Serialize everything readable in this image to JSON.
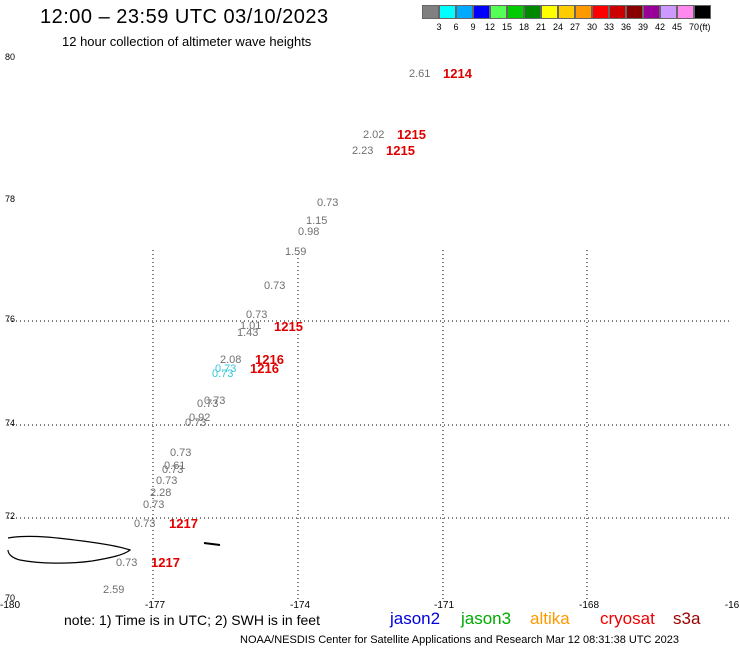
{
  "title": "12:00 – 23:59 UTC 03/10/2023",
  "subtitle": "12 hour collection of altimeter wave heights",
  "legend": {
    "unit": "(ft)",
    "items": [
      {
        "label": "3",
        "color": "#808080"
      },
      {
        "label": "6",
        "color": "#00ffff"
      },
      {
        "label": "9",
        "color": "#00aaff"
      },
      {
        "label": "12",
        "color": "#0000ff"
      },
      {
        "label": "15",
        "color": "#55ff55"
      },
      {
        "label": "18",
        "color": "#00cc00"
      },
      {
        "label": "21",
        "color": "#008800"
      },
      {
        "label": "24",
        "color": "#ffff00"
      },
      {
        "label": "27",
        "color": "#ffcc00"
      },
      {
        "label": "30",
        "color": "#ff9900"
      },
      {
        "label": "33",
        "color": "#ff0000"
      },
      {
        "label": "36",
        "color": "#cc0000"
      },
      {
        "label": "39",
        "color": "#880000"
      },
      {
        "label": "42",
        "color": "#990099"
      },
      {
        "label": "45",
        "color": "#cc99ff"
      },
      {
        "label": "70",
        "color": "#ff88ee"
      },
      {
        "label": "",
        "color": "#000000"
      }
    ]
  },
  "axes": {
    "lat_labels": [
      "80",
      "78",
      "76",
      "74",
      "72",
      "70"
    ],
    "lon_labels": [
      "-180",
      "-177",
      "-174",
      "-171",
      "-168",
      "-16"
    ]
  },
  "wave_heights": [
    {
      "value": "2.61",
      "color": "grey"
    },
    {
      "value": "2.02",
      "color": "grey"
    },
    {
      "value": "2.23",
      "color": "grey"
    },
    {
      "value": "0.73",
      "color": "grey"
    },
    {
      "value": "1.15",
      "color": "grey"
    },
    {
      "value": "0.98",
      "color": "grey"
    },
    {
      "value": "1.59",
      "color": "grey"
    },
    {
      "value": "0.73",
      "color": "grey"
    },
    {
      "value": "0.73",
      "color": "grey"
    },
    {
      "value": "1.01",
      "color": "grey"
    },
    {
      "value": "1.43",
      "color": "grey"
    },
    {
      "value": "2.08",
      "color": "grey"
    },
    {
      "value": "0.73",
      "color": "cyan"
    },
    {
      "value": "0.73",
      "color": "cyan"
    },
    {
      "value": "0.73",
      "color": "grey"
    },
    {
      "value": "0.73",
      "color": "grey"
    },
    {
      "value": "0.92",
      "color": "grey"
    },
    {
      "value": "0.73",
      "color": "grey"
    },
    {
      "value": "0.73",
      "color": "grey"
    },
    {
      "value": "0.61",
      "color": "grey"
    },
    {
      "value": "0.73",
      "color": "grey"
    },
    {
      "value": "0.73",
      "color": "grey"
    },
    {
      "value": "2.28",
      "color": "grey"
    },
    {
      "value": "0.73",
      "color": "grey"
    },
    {
      "value": "0.73",
      "color": "grey"
    },
    {
      "value": "0.73",
      "color": "grey"
    },
    {
      "value": "2.59",
      "color": "grey"
    }
  ],
  "pass_times": [
    "1214",
    "1215",
    "1215",
    "1215",
    "1216",
    "1216",
    "1217",
    "1217"
  ],
  "note": "note: 1) Time is in UTC; 2) SWH is in feet",
  "satellites": [
    {
      "name": "jason2",
      "color": "#0000dd"
    },
    {
      "name": "jason3",
      "color": "#00aa00"
    },
    {
      "name": "altika",
      "color": "#ff9900"
    },
    {
      "name": "cryosat",
      "color": "#ee0000"
    },
    {
      "name": "s3a",
      "color": "#990000"
    }
  ],
  "footer": "NOAA/NESDIS Center for Satellite Applications and Research    Mar 12 08:31:38 UTC 2023"
}
